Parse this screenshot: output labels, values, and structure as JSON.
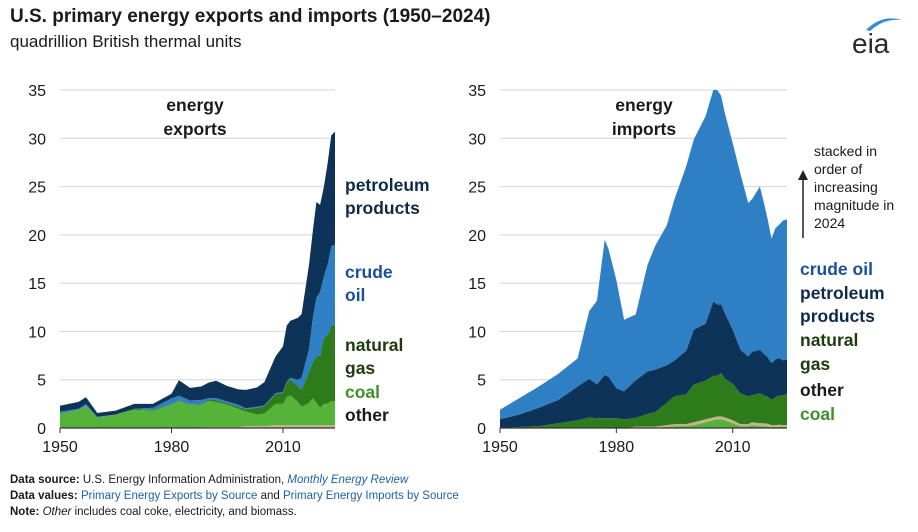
{
  "header": {
    "title": "U.S. primary energy exports and imports (1950–2024)",
    "subtitle": "quadrillion British thermal units",
    "logo_text": "eia"
  },
  "colors": {
    "petroleum_products": "#0e3358",
    "crude_oil": "#2f7fc4",
    "natural_gas": "#2e7b1c",
    "coal": "#56b33a",
    "other": "#c7b28a",
    "crude_oil_label": "#1a4f9c",
    "natural_gas_label": "#203a12",
    "coal_label": "#3f8f2a",
    "petroleum_label": "#0e2a4a"
  },
  "chart_data": [
    {
      "type": "area",
      "stacked": true,
      "title": "energy exports",
      "x": [
        1950,
        1955,
        1957,
        1960,
        1965,
        1970,
        1975,
        1980,
        1982,
        1985,
        1988,
        1990,
        1992,
        1995,
        1998,
        2000,
        2003,
        2005,
        2008,
        2010,
        2011,
        2012,
        2014,
        2015,
        2017,
        2018,
        2019,
        2020,
        2021,
        2022,
        2023,
        2024
      ],
      "series": [
        {
          "name": "other",
          "values": [
            0,
            0,
            0,
            0,
            0,
            0,
            0,
            0,
            0,
            0,
            0,
            0.1,
            0.1,
            0.1,
            0.1,
            0.2,
            0.2,
            0.2,
            0.3,
            0.3,
            0.3,
            0.3,
            0.3,
            0.3,
            0.3,
            0.3,
            0.3,
            0.3,
            0.3,
            0.3,
            0.3,
            0.3
          ]
        },
        {
          "name": "coal",
          "values": [
            1.5,
            1.9,
            2.3,
            1.1,
            1.4,
            1.9,
            1.8,
            2.4,
            2.8,
            2.4,
            2.4,
            2.7,
            2.6,
            2.3,
            1.9,
            1.5,
            1.2,
            1.3,
            2.2,
            2.2,
            2.9,
            3.1,
            2.4,
            1.9,
            2.3,
            2.8,
            2.3,
            1.8,
            2.2,
            2.2,
            2.5,
            2.5
          ]
        },
        {
          "name": "natural gas",
          "values": [
            0,
            0,
            0,
            0,
            0,
            0.1,
            0.1,
            0.05,
            0.05,
            0.05,
            0.1,
            0.1,
            0.2,
            0.15,
            0.2,
            0.25,
            0.7,
            0.75,
            1.0,
            1.15,
            1.5,
            1.65,
            1.6,
            1.8,
            3.2,
            3.7,
            4.8,
            5.4,
            6.9,
            7.1,
            7.8,
            7.9
          ]
        },
        {
          "name": "crude oil",
          "values": [
            0.2,
            0.1,
            0.2,
            0.05,
            0,
            0,
            0.2,
            0.6,
            0.5,
            0.4,
            0.4,
            0.2,
            0.2,
            0.2,
            0.2,
            0.1,
            0.1,
            0.1,
            0.1,
            0.1,
            0.1,
            0.15,
            0.7,
            1.2,
            2.4,
            4.5,
            6.1,
            6.6,
            6.3,
            7.3,
            8.2,
            8.3
          ]
        },
        {
          "name": "petroleum products",
          "values": [
            0.6,
            0.7,
            0.7,
            0.4,
            0.4,
            0.5,
            0.4,
            0.5,
            1.6,
            1.3,
            1.4,
            1.6,
            1.8,
            1.6,
            1.6,
            1.9,
            2.0,
            2.4,
            3.8,
            4.7,
            5.8,
            5.9,
            6.4,
            6.6,
            8.7,
            9.0,
            9.9,
            9.0,
            9.3,
            10.5,
            11.5,
            11.7
          ]
        }
      ],
      "xlim": [
        1950,
        2024
      ],
      "ylim": [
        0,
        35
      ],
      "xticks": [
        "1950",
        "1980",
        "2010"
      ],
      "yticks": [
        "0",
        "5",
        "10",
        "15",
        "20",
        "25",
        "30",
        "35"
      ],
      "legend_order_top_to_bottom": [
        "petroleum products",
        "crude oil",
        "natural gas",
        "coal",
        "other"
      ],
      "legend_placement": "right"
    },
    {
      "type": "area",
      "stacked": true,
      "title": "energy imports",
      "x": [
        1950,
        1955,
        1960,
        1965,
        1970,
        1973,
        1975,
        1977,
        1978,
        1980,
        1982,
        1985,
        1988,
        1990,
        1993,
        1995,
        1998,
        2000,
        2003,
        2005,
        2006,
        2007,
        2008,
        2010,
        2012,
        2014,
        2015,
        2017,
        2018,
        2019,
        2020,
        2021,
        2022,
        2023,
        2024
      ],
      "series": [
        {
          "name": "coal",
          "values": [
            0,
            0,
            0,
            0,
            0,
            0,
            0,
            0,
            0,
            0,
            0,
            0.05,
            0.05,
            0.05,
            0.1,
            0.2,
            0.2,
            0.3,
            0.6,
            0.8,
            0.9,
            0.9,
            0.8,
            0.5,
            0.2,
            0.2,
            0.3,
            0.2,
            0.2,
            0.15,
            0.1,
            0.1,
            0.15,
            0.1,
            0.1
          ]
        },
        {
          "name": "other",
          "values": [
            0,
            0,
            0,
            0,
            0,
            0,
            0,
            0,
            0,
            0,
            0,
            0.1,
            0.1,
            0.1,
            0.2,
            0.2,
            0.2,
            0.3,
            0.3,
            0.3,
            0.3,
            0.3,
            0.3,
            0.3,
            0.2,
            0.2,
            0.3,
            0.3,
            0.3,
            0.3,
            0.2,
            0.2,
            0.2,
            0.2,
            0.2
          ]
        },
        {
          "name": "natural gas",
          "values": [
            0,
            0.1,
            0.2,
            0.5,
            0.8,
            1.1,
            1.0,
            1.0,
            1.0,
            1.0,
            0.9,
            0.9,
            1.3,
            1.5,
            2.3,
            2.9,
            3.1,
            3.9,
            4.0,
            4.3,
            4.2,
            4.5,
            4.0,
            3.8,
            3.2,
            2.9,
            2.8,
            3.1,
            2.9,
            2.8,
            2.6,
            2.9,
            3.0,
            3.1,
            3.2
          ]
        },
        {
          "name": "petroleum products",
          "values": [
            0.9,
            1.3,
            1.9,
            2.4,
            3.5,
            4.0,
            3.5,
            4.5,
            4.3,
            3.1,
            2.9,
            3.9,
            4.4,
            4.4,
            3.9,
            3.7,
            4.5,
            5.7,
            5.9,
            7.7,
            7.4,
            7.1,
            6.8,
            5.6,
            4.5,
            4.1,
            4.5,
            4.5,
            4.3,
            4.1,
            3.8,
            3.9,
            3.9,
            3.6,
            3.6
          ]
        },
        {
          "name": "crude oil",
          "values": [
            1.0,
            1.7,
            2.2,
            2.7,
            2.9,
            7.0,
            8.7,
            14.0,
            13.2,
            11.2,
            7.4,
            6.8,
            11.0,
            12.8,
            14.5,
            16.7,
            19.1,
            19.7,
            21.5,
            21.9,
            22.2,
            21.6,
            20.7,
            19.3,
            18.2,
            15.9,
            15.8,
            16.9,
            15.7,
            14.3,
            12.9,
            13.6,
            13.8,
            14.5,
            14.5
          ]
        }
      ],
      "xlim": [
        1950,
        2024
      ],
      "ylim": [
        0,
        35
      ],
      "xticks": [
        "1950",
        "1980",
        "2010"
      ],
      "yticks": [
        "0",
        "5",
        "10",
        "15",
        "20",
        "25",
        "30",
        "35"
      ],
      "legend_order_top_to_bottom": [
        "crude oil",
        "petroleum products",
        "natural gas",
        "other",
        "coal"
      ],
      "legend_placement": "right"
    }
  ],
  "labels": {
    "exports_title": [
      "energy",
      "exports"
    ],
    "imports_title": [
      "energy",
      "imports"
    ],
    "exports_legend": {
      "petroleum": [
        "petroleum",
        "products"
      ],
      "crude": [
        "crude",
        "oil"
      ],
      "gas": [
        "natural",
        "gas"
      ],
      "coal": "coal",
      "other": "other"
    },
    "imports_legend": {
      "crude": "crude oil",
      "petroleum": [
        "petroleum",
        "products"
      ],
      "gas": [
        "natural",
        "gas"
      ],
      "other": "other",
      "coal": "coal"
    },
    "annotation": [
      "stacked in",
      "order of",
      "increasing",
      "magnitude in",
      "2024"
    ]
  },
  "footer": {
    "source_label": "Data source:",
    "source_text": "U.S. Energy Information Administration,",
    "source_link": "Monthly Energy Review",
    "values_label": "Data values:",
    "values_link1": "Primary Energy Exports by Source",
    "values_and": "and",
    "values_link2": "Primary Energy Imports by Source",
    "note_label": "Note:",
    "note_other": "Other",
    "note_text": "includes coal coke, electricity, and biomass."
  }
}
